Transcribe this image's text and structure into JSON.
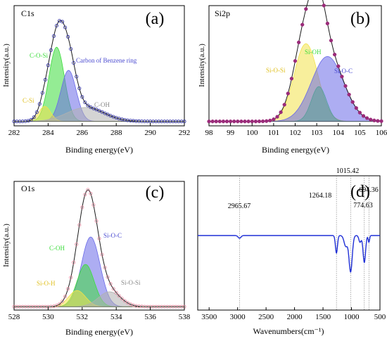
{
  "colors": {
    "envelope": "#1a1a1a",
    "c1s_fit_markers": "#2a2aa0",
    "si2p_markers": "#9b2b7a",
    "o1s_markers": "#e58aa0",
    "ftir_line": "#1f2fd6",
    "peak_green": "#3ddc3d",
    "peak_blue": "#6a6ae8",
    "peak_yellow": "#f2e24a",
    "peak_gray": "#b0b0b0"
  },
  "chart_data": [
    {
      "panel": "(a)",
      "type": "line",
      "title": "C1s",
      "xlabel": "Binding energy(eV)",
      "ylabel": "Intensity(a.u.)",
      "xlim": [
        282,
        292
      ],
      "xticks": [
        "282",
        "284",
        "286",
        "288",
        "290",
        "292"
      ],
      "background": 0.02,
      "series": [
        {
          "name": "C-O-Si",
          "center": 284.5,
          "height": 0.64,
          "width": 0.45,
          "color": "green"
        },
        {
          "name": "Carbon of Benzene ring",
          "center": 285.2,
          "height": 0.44,
          "width": 0.45,
          "color": "blue"
        },
        {
          "name": "C-Si",
          "center": 283.8,
          "height": 0.13,
          "width": 0.35,
          "color": "yellow"
        },
        {
          "name": "C-OH",
          "center": 286.2,
          "height": 0.12,
          "width": 1.1,
          "color": "gray"
        }
      ]
    },
    {
      "panel": "(b)",
      "type": "line",
      "title": "Si2p",
      "xlabel": "Binding energy(eV)",
      "ylabel": "Intensity(a.u.)",
      "xlim": [
        98,
        106
      ],
      "xticks": [
        "98",
        "99",
        "100",
        "101",
        "102",
        "103",
        "104",
        "105",
        "106"
      ],
      "background": 0.02,
      "series": [
        {
          "name": "Si-O-Si",
          "center": 102.5,
          "height": 0.67,
          "width": 0.55,
          "color": "yellow"
        },
        {
          "name": "Si-OH",
          "center": 103.1,
          "height": 0.3,
          "width": 0.35,
          "color": "green"
        },
        {
          "name": "Si-O-C",
          "center": 103.5,
          "height": 0.56,
          "width": 0.75,
          "color": "blue"
        }
      ]
    },
    {
      "panel": "(c)",
      "type": "line",
      "title": "O1s",
      "xlabel": "Binding energy(eV)",
      "ylabel": "Intensity(a.u.)",
      "xlim": [
        528,
        538
      ],
      "xticks": [
        "528",
        "530",
        "532",
        "534",
        "536",
        "538"
      ],
      "background": 0.01,
      "series": [
        {
          "name": "Si-O-C",
          "center": 532.5,
          "height": 0.56,
          "width": 0.55,
          "color": "blue"
        },
        {
          "name": "C-OH",
          "center": 532.2,
          "height": 0.34,
          "width": 0.5,
          "color": "green"
        },
        {
          "name": "Si-O-H",
          "center": 531.7,
          "height": 0.13,
          "width": 0.5,
          "color": "yellow"
        },
        {
          "name": "Si-O-Si",
          "center": 533.6,
          "height": 0.12,
          "width": 0.65,
          "color": "gray"
        }
      ]
    },
    {
      "panel": "(d)",
      "type": "line",
      "xlabel": "Wavenumbers(cm⁻¹)",
      "xlim": [
        3700,
        500
      ],
      "xticks": [
        "3500",
        "3000",
        "2500",
        "2000",
        "1500",
        "1000",
        "500"
      ],
      "baseline": 0.555,
      "annotations": [
        "2965.67",
        "1264.18",
        "1015.42",
        "774.63",
        "694.36"
      ],
      "dips": [
        {
          "x": 2965.67,
          "depth": 0.02,
          "width": 25
        },
        {
          "x": 1264.18,
          "depth": 0.13,
          "width": 18
        },
        {
          "x": 1100,
          "depth": 0.08,
          "width": 30
        },
        {
          "x": 1015.42,
          "depth": 0.27,
          "width": 28
        },
        {
          "x": 850,
          "depth": 0.05,
          "width": 20
        },
        {
          "x": 774.63,
          "depth": 0.2,
          "width": 22
        },
        {
          "x": 694.36,
          "depth": 0.05,
          "width": 12
        }
      ]
    }
  ]
}
